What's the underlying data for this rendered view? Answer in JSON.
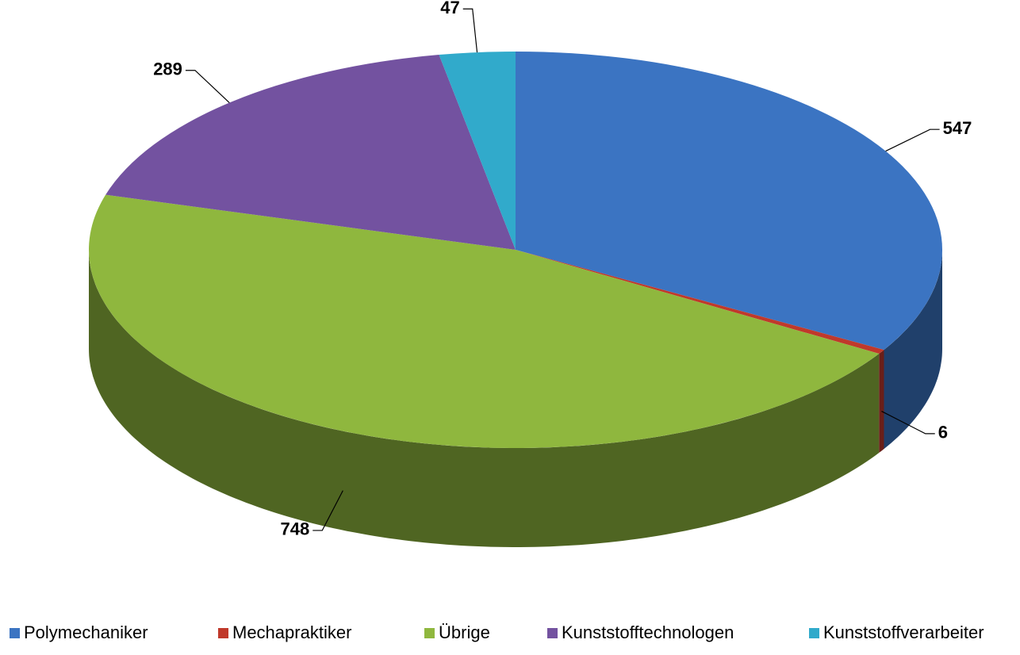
{
  "chart_data": {
    "type": "pie3d",
    "categories": [
      "Polymechaniker",
      "Mechapraktiker",
      "Übrige",
      "Kunststofftechnologen",
      "Kunststoffverarbeiter"
    ],
    "values": [
      547,
      6,
      748,
      289,
      47
    ],
    "colors": [
      "#3b74c2",
      "#c0392b",
      "#8fb73e",
      "#7352a0",
      "#31aacb"
    ],
    "legend": "bottom"
  }
}
